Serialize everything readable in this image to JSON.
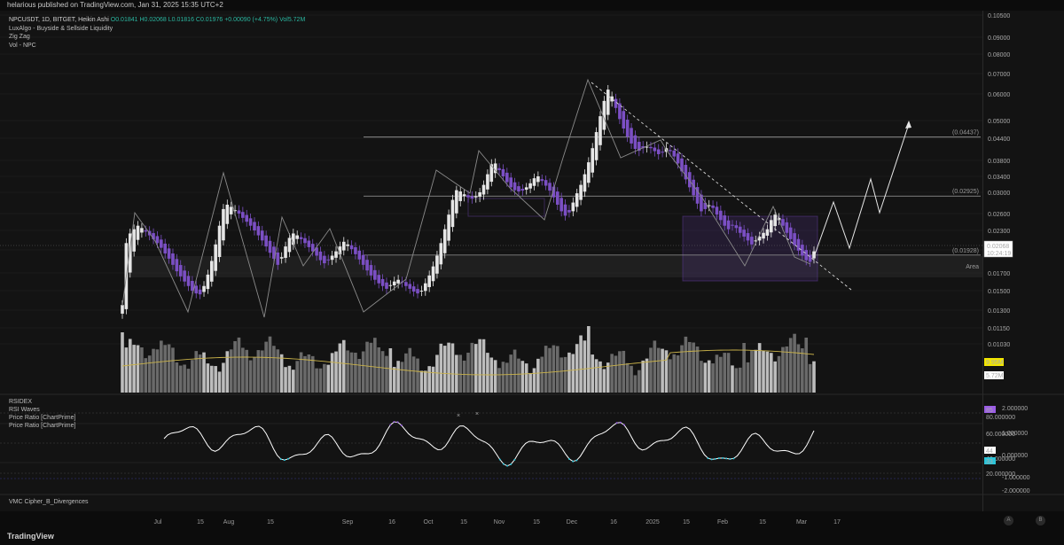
{
  "header": {
    "published": "helarious published on TradingView.com, Jan 31, 2025 15:35 UTC+2"
  },
  "legend": {
    "symbol": "NPCUSDT, 1D, BITGET, Heikin Ashi",
    "ohlc": "O0.01841  H0.02068  L0.01816  C0.01976  +0.00090 (+4.75%)  Vol5.72M",
    "indicators": [
      "LuxAlgo - Buyside & Sellside Liquidity",
      "Zig Zag",
      "Vol - NPC"
    ]
  },
  "rsi_legend": [
    "RSIDEX",
    "RSI Waves",
    "Price Ratio [ChartPrime]",
    "Price Ratio [ChartPrime]"
  ],
  "vmc_label": "VMC Cipher_B_Divergences",
  "footer": {
    "brand": "TradingView",
    "btn_a": "A",
    "btn_l": "B"
  },
  "colors": {
    "bull": "#e6e6e6",
    "bear": "#7b4fc4",
    "volume_avg": "#c9b24a",
    "rsi": "#ffffff",
    "rsi_high": "#9b5de5",
    "rsi_low": "#2bc4d8",
    "badge_price": "#ffffff",
    "badge_vol_avg": "#f2e600"
  },
  "chart_data": [
    {
      "type": "candlestick",
      "name": "NPCUSDT",
      "y_ticks": [
        "0.10500",
        "0.09000",
        "0.08000",
        "0.07000",
        "0.06000",
        "0.05000",
        "0.04400",
        "0.03800",
        "0.03400",
        "0.03000",
        "0.02600",
        "0.02300",
        "0.02000",
        "0.01700",
        "0.01500",
        "0.01300",
        "0.01150",
        "0.01030"
      ],
      "x_ticks": [
        "Jul",
        "15",
        "Aug",
        "15",
        "Sep",
        "16",
        "Oct",
        "15",
        "Nov",
        "15",
        "Dec",
        "16",
        "2025",
        "15",
        "Feb",
        "15",
        "Mar",
        "17"
      ],
      "levels": [
        {
          "label": "(0.04437)",
          "value": 0.04437
        },
        {
          "label": "(0.02925)",
          "value": 0.02925
        },
        {
          "label": "(0.01928)",
          "value": 0.01928
        }
      ],
      "zone_label": "Area",
      "last_price": "0.02068",
      "countdown": "10:24:19",
      "closes": [
        0.0135,
        0.021,
        0.0225,
        0.0232,
        0.0238,
        0.0234,
        0.0228,
        0.0222,
        0.0216,
        0.021,
        0.0203,
        0.0195,
        0.0188,
        0.018,
        0.0172,
        0.0166,
        0.016,
        0.0155,
        0.015,
        0.0147,
        0.0146,
        0.0155,
        0.0168,
        0.0185,
        0.0208,
        0.0238,
        0.0268,
        0.0276,
        0.0272,
        0.0266,
        0.026,
        0.0252,
        0.0245,
        0.0238,
        0.023,
        0.0222,
        0.0214,
        0.0205,
        0.0196,
        0.0188,
        0.018,
        0.019,
        0.0205,
        0.0218,
        0.0225,
        0.0222,
        0.0216,
        0.021,
        0.0204,
        0.0198,
        0.0192,
        0.0186,
        0.0182,
        0.0186,
        0.0192,
        0.0198,
        0.0205,
        0.0212,
        0.0208,
        0.0201,
        0.0194,
        0.0187,
        0.018,
        0.0173,
        0.0167,
        0.0162,
        0.0158,
        0.0155,
        0.0152,
        0.0156,
        0.016,
        0.0162,
        0.0159,
        0.0155,
        0.0152,
        0.0149,
        0.0147,
        0.015,
        0.0158,
        0.0167,
        0.0178,
        0.0192,
        0.021,
        0.0232,
        0.0258,
        0.0285,
        0.0305,
        0.0302,
        0.0296,
        0.029,
        0.0288,
        0.0292,
        0.03,
        0.0318,
        0.0345,
        0.037,
        0.0372,
        0.0355,
        0.034,
        0.0325,
        0.0312,
        0.0305,
        0.0302,
        0.0304,
        0.0312,
        0.0322,
        0.0335,
        0.034,
        0.0328,
        0.0316,
        0.0304,
        0.029,
        0.0276,
        0.0264,
        0.0256,
        0.0262,
        0.028,
        0.0298,
        0.0318,
        0.0345,
        0.0375,
        0.0412,
        0.046,
        0.0515,
        0.0572,
        0.062,
        0.059,
        0.0545,
        0.0505,
        0.0472,
        0.0445,
        0.0425,
        0.041,
        0.0405,
        0.0412,
        0.0416,
        0.0412,
        0.0404,
        0.0396,
        0.0402,
        0.0412,
        0.0404,
        0.039,
        0.0372,
        0.0352,
        0.0332,
        0.0312,
        0.0294,
        0.0278,
        0.0264,
        0.0268,
        0.0275,
        0.027,
        0.0258,
        0.0248,
        0.0238,
        0.0232,
        0.0238,
        0.0234,
        0.0226,
        0.022,
        0.0214,
        0.0208,
        0.0214,
        0.022,
        0.0226,
        0.0232,
        0.0248,
        0.0258,
        0.0252,
        0.0238,
        0.0226,
        0.0216,
        0.0207,
        0.0199,
        0.0192,
        0.0186,
        0.0184,
        0.0198
      ]
    },
    {
      "type": "bar",
      "name": "Vol - NPC",
      "badges": [
        "9.95M",
        "5.72M"
      ]
    },
    {
      "type": "line",
      "name": "RSIDEX",
      "y_ticks_right": [
        "2.000000",
        "1.000000",
        "0.000000",
        "-1.000000",
        "-2.000000"
      ],
      "y_ticks_left": [
        "60.000000",
        "40.000000",
        "20.000000"
      ],
      "badges": [
        "85",
        "44",
        "33"
      ],
      "first_ticks": [
        "80.000000"
      ]
    }
  ]
}
